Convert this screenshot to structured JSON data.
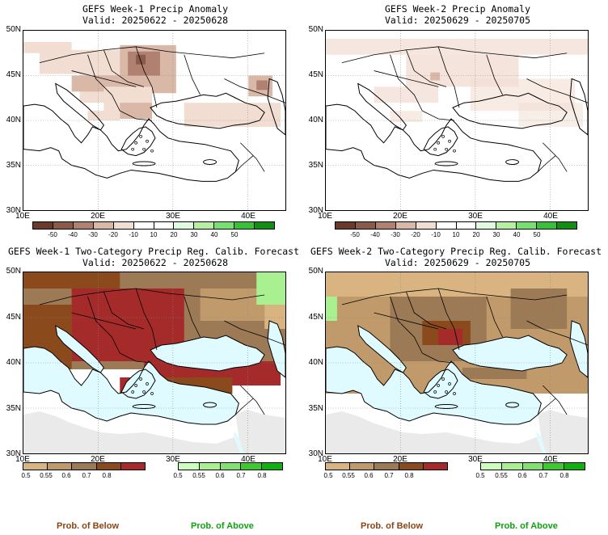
{
  "panels": {
    "p1": {
      "title": "GEFS Week-1 Precip Anomaly",
      "valid": "Valid: 20250622 - 20250628"
    },
    "p2": {
      "title": "GEFS Week-2 Precip Anomaly",
      "valid": "Valid: 20250629 - 20250705"
    },
    "p3": {
      "title": "GEFS Week-1 Two-Category Precip Reg. Calib. Forecast",
      "valid": "Valid: 20250622 - 20250628"
    },
    "p4": {
      "title": "GEFS Week-2 Two-Category Precip Reg. Calib. Forecast",
      "valid": "Valid: 20250629 - 20250705"
    }
  },
  "axes": {
    "lat": [
      "50N",
      "45N",
      "40N",
      "35N",
      "30N"
    ],
    "lon": [
      "10E",
      "20E",
      "30E",
      "40E"
    ]
  },
  "anomaly_colorbar": {
    "colors": [
      "#6b3a2a",
      "#8c5a4a",
      "#b08070",
      "#dab8a8",
      "#f1ddd2",
      "#ffffff",
      "#ffffff",
      "#e0fae0",
      "#b4f0a0",
      "#78e070",
      "#38c038",
      "#109010"
    ],
    "ticks": [
      "-50",
      "-40",
      "-30",
      "-20",
      "-10",
      "10",
      "20",
      "30",
      "40",
      "50"
    ]
  },
  "below_colorbar": {
    "colors": [
      "#d9b380",
      "#c19a6b",
      "#9c7a55",
      "#8b4a1c",
      "#a52a2a"
    ],
    "ticks": [
      "0.5",
      "0.55",
      "0.6",
      "0.7",
      "0.8"
    ],
    "label": "Prob. of Below",
    "label_color": "#8b4513"
  },
  "above_colorbar": {
    "colors": [
      "#ccffbb",
      "#a8f090",
      "#80e070",
      "#40c830",
      "#10b010"
    ],
    "ticks": [
      "0.5",
      "0.55",
      "0.6",
      "0.7",
      "0.8"
    ],
    "label": "Prob. of Above",
    "label_color": "#10a010"
  },
  "map_colors": {
    "sea": "#e0fbff",
    "land_no_signal": "#eaeaea",
    "land": "#ffffff",
    "coast": "#000000",
    "grid": "#888888"
  }
}
